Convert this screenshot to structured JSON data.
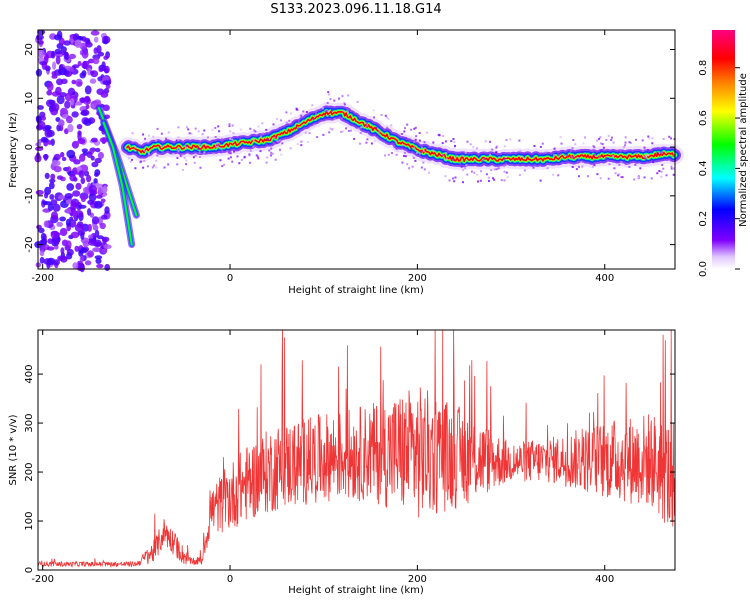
{
  "title": "S133.2023.096.11.18.G14",
  "charts": [
    {
      "type": "heatmap",
      "xlabel": "Height of straight line (km)",
      "ylabel": "Frequency (Hz)",
      "xlim": [
        -205,
        475
      ],
      "ylim": [
        -25,
        24
      ],
      "xticks": [
        -200,
        0,
        200,
        400
      ],
      "yticks": [
        -20,
        -10,
        0,
        10,
        20
      ],
      "colorbar": {
        "label": "Normalized spectral amplitude",
        "range": [
          0,
          0.95
        ],
        "ticks": [
          "0.0",
          "0.2",
          "0.4",
          "0.6",
          "0.8"
        ],
        "tick_values": [
          0,
          0.2,
          0.4,
          0.6,
          0.8
        ]
      },
      "ridge": {
        "x": [
          -110,
          -95,
          -80,
          -60,
          -40,
          -20,
          0,
          20,
          40,
          60,
          80,
          100,
          120,
          140,
          160,
          180,
          200,
          220,
          240,
          260,
          280,
          300,
          320,
          340,
          360,
          380,
          400,
          420,
          440,
          460,
          475
        ],
        "y": [
          0,
          -1,
          0,
          0,
          0,
          0,
          0.5,
          1,
          1.5,
          3,
          5,
          7,
          7,
          5,
          3,
          1,
          -0.5,
          -1.5,
          -2.5,
          -2.5,
          -2.5,
          -2.5,
          -2.5,
          -2.5,
          -2,
          -2,
          -2,
          -2,
          -2,
          -1.5,
          -1.5
        ]
      },
      "branches": [
        {
          "x": [
            -140,
            -130,
            -120,
            -110,
            -100
          ],
          "y": [
            8,
            3,
            -2,
            -8,
            -14
          ]
        },
        {
          "x": [
            -135,
            -125,
            -115,
            -105
          ],
          "y": [
            5,
            0,
            -8,
            -20
          ]
        }
      ],
      "noise_region_x": [
        -205,
        -130
      ],
      "colors": [
        "#ffffff",
        "#e0c8ff",
        "#8000ff",
        "#0000ff",
        "#00ffff",
        "#00ff00",
        "#ffff00",
        "#ff8000",
        "#ff0000",
        "#ff0080"
      ]
    },
    {
      "type": "line",
      "xlabel": "Height of straight line (km)",
      "ylabel": "SNR (10 * v/v)",
      "xlim": [
        -205,
        475
      ],
      "ylim": [
        0,
        490
      ],
      "xticks": [
        -200,
        0,
        200,
        400
      ],
      "yticks": [
        0,
        100,
        200,
        300,
        400
      ],
      "color": "#ef3535",
      "envelope": {
        "x": [
          -205,
          -100,
          -80,
          -70,
          -50,
          -40,
          -30,
          -20,
          0,
          20,
          50,
          100,
          150,
          200,
          250,
          300,
          350,
          400,
          450,
          475
        ],
        "y": [
          12,
          12,
          40,
          80,
          30,
          15,
          20,
          120,
          150,
          180,
          210,
          230,
          240,
          240,
          230,
          220,
          225,
          225,
          225,
          180
        ],
        "amplitude": [
          5,
          5,
          25,
          30,
          20,
          5,
          10,
          50,
          70,
          80,
          90,
          90,
          100,
          140,
          100,
          40,
          50,
          80,
          100,
          120
        ]
      }
    }
  ]
}
